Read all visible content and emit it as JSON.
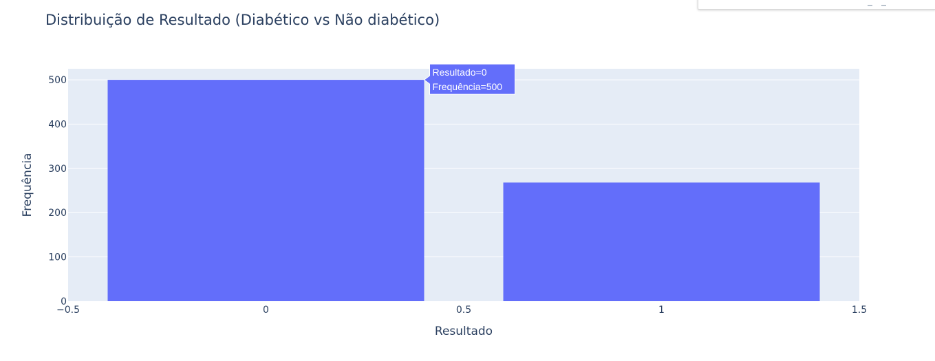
{
  "chart_data": {
    "type": "bar",
    "title": "Distribuição de Resultado (Diabético vs Não diabético)",
    "xlabel": "Resultado",
    "ylabel": "Frequência",
    "x": [
      0,
      1
    ],
    "values": [
      500,
      268
    ],
    "bar_width": 0.8,
    "xlim": [
      -0.5,
      1.5
    ],
    "ylim": [
      0,
      525
    ],
    "x_ticks": [
      -0.5,
      0,
      0.5,
      1,
      1.5
    ],
    "x_tick_labels": [
      "−0.5",
      "0",
      "0.5",
      "1",
      "1.5"
    ],
    "y_ticks": [
      0,
      100,
      200,
      300,
      400,
      500
    ],
    "y_tick_labels": [
      "0",
      "100",
      "200",
      "300",
      "400",
      "500"
    ],
    "grid": true,
    "colors": {
      "bar": "#636efa",
      "plot_bg": "#e5ecf6",
      "grid": "#ffffff",
      "text": "#2a3f5f"
    },
    "hover": {
      "bar_index": 0,
      "lines": [
        "Resultado=0",
        "Frequência=500"
      ]
    }
  }
}
